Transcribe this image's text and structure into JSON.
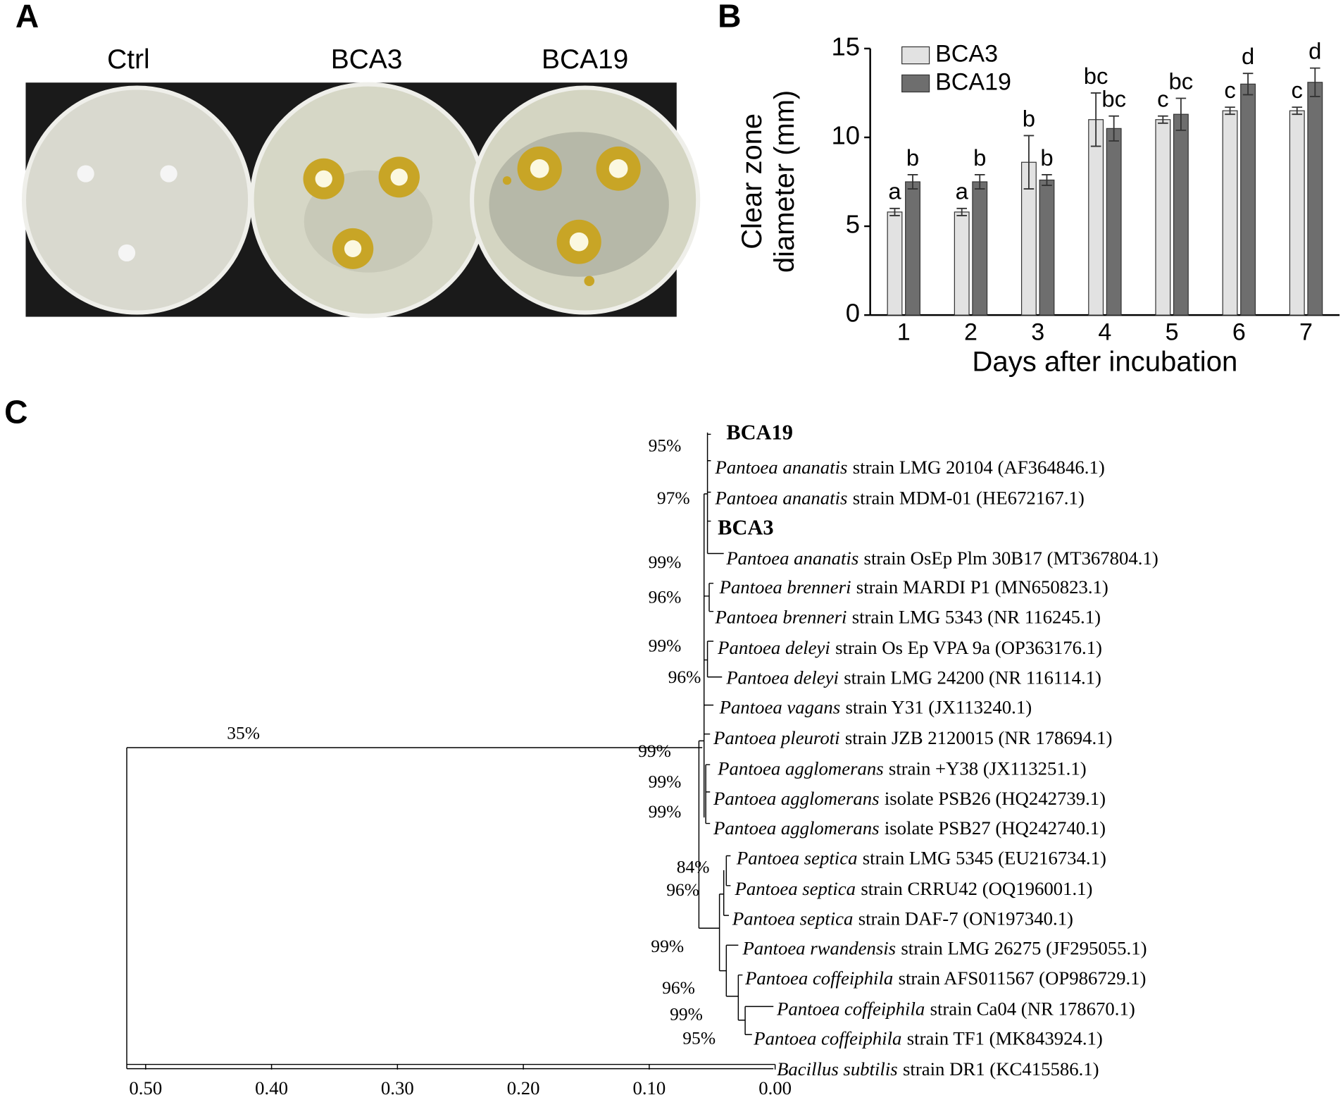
{
  "panel_labels": [
    "A",
    "B",
    "C"
  ],
  "photo": {
    "labels": [
      "Ctrl",
      "BCA3",
      "BCA19"
    ]
  },
  "chart_data": {
    "type": "bar",
    "categories": [
      "1",
      "2",
      "3",
      "4",
      "5",
      "6",
      "7"
    ],
    "xlabel": "Days after incubation",
    "ylabel": [
      "Clear zone",
      "diameter (mm)"
    ],
    "ylim": [
      0,
      15
    ],
    "yticks": [
      0,
      5,
      10,
      15
    ],
    "legend": "top-left",
    "series": [
      {
        "name": "BCA3",
        "color": "#e2e2e2",
        "values": [
          5.8,
          5.8,
          8.6,
          11.0,
          11.0,
          11.5,
          11.5
        ],
        "errors": [
          0.2,
          0.2,
          1.5,
          1.5,
          0.2,
          0.2,
          0.2
        ],
        "letters": [
          "a",
          "a",
          "b",
          "bc",
          "c",
          "c",
          "c"
        ]
      },
      {
        "name": "BCA19",
        "color": "#6e6e6e",
        "values": [
          7.5,
          7.5,
          7.6,
          10.5,
          11.3,
          13.0,
          13.1
        ],
        "errors": [
          0.4,
          0.4,
          0.3,
          0.7,
          0.9,
          0.6,
          0.8
        ],
        "letters": [
          "b",
          "b",
          "b",
          "bc",
          "bc",
          "d",
          "d"
        ]
      }
    ]
  },
  "tree": {
    "leaves": [
      {
        "name": "BCA19",
        "bold": true
      },
      {
        "name": "Pantoea ananatis",
        "rest": "strain LMG 20104 (AF364846.1)"
      },
      {
        "name": "Pantoea ananatis",
        "rest": "strain MDM-01 (HE672167.1)"
      },
      {
        "name": "BCA3",
        "bold": true
      },
      {
        "name": "Pantoea ananatis",
        "rest": "strain OsEp Plm 30B17 (MT367804.1)"
      },
      {
        "name": "Pantoea brenneri",
        "rest": "strain MARDI P1 (MN650823.1)"
      },
      {
        "name": "Pantoea brenneri",
        "rest": "strain LMG 5343 (NR 116245.1)"
      },
      {
        "name": "Pantoea deleyi",
        "rest": "strain Os Ep VPA 9a (OP363176.1)"
      },
      {
        "name": "Pantoea deleyi",
        "rest": "strain LMG 24200 (NR 116114.1)"
      },
      {
        "name": "Pantoea vagans",
        "rest": "strain Y31 (JX113240.1)"
      },
      {
        "name": "Pantoea pleuroti",
        "rest": "strain JZB 2120015 (NR 178694.1)"
      },
      {
        "name": "Pantoea agglomerans",
        "rest": "strain +Y38 (JX113251.1)"
      },
      {
        "name": "Pantoea agglomerans",
        "rest": "isolate PSB26 (HQ242739.1)"
      },
      {
        "name": "Pantoea agglomerans",
        "rest": "isolate PSB27 (HQ242740.1)"
      },
      {
        "name": "Pantoea septica",
        "rest": "strain LMG 5345 (EU216734.1)"
      },
      {
        "name": "Pantoea septica",
        "rest": "strain CRRU42 (OQ196001.1)"
      },
      {
        "name": "Pantoea septica",
        "rest": "strain DAF-7 (ON197340.1)"
      },
      {
        "name": "Pantoea rwandensis",
        "rest": "strain LMG 26275 (JF295055.1)"
      },
      {
        "name": "Pantoea coffeiphila",
        "rest": "strain AFS011567 (OP986729.1)"
      },
      {
        "name": "Pantoea coffeiphila",
        "rest": "strain Ca04 (NR 178670.1)"
      },
      {
        "name": "Pantoea coffeiphila",
        "rest": "strain TF1 (MK843924.1)"
      },
      {
        "name": "Bacillus subtilis",
        "rest": "strain DR1 (KC415586.1)"
      }
    ],
    "bootstrap": [
      "95%",
      "97%",
      "99%",
      "96%",
      "99%",
      "96%",
      "35%",
      "99%",
      "99%",
      "99%",
      "84%",
      "96%",
      "99%",
      "96%",
      "99%",
      "95%"
    ],
    "xlim": [
      0.515,
      0
    ],
    "xticks": [
      {
        "value": 0.5,
        "label": "0.50"
      },
      {
        "value": 0.4,
        "label": "0.40"
      },
      {
        "value": 0.3,
        "label": "0.30"
      },
      {
        "value": 0.2,
        "label": "0.20"
      },
      {
        "value": 0.1,
        "label": "0.10"
      },
      {
        "value": 0,
        "label": "0.00"
      }
    ]
  }
}
